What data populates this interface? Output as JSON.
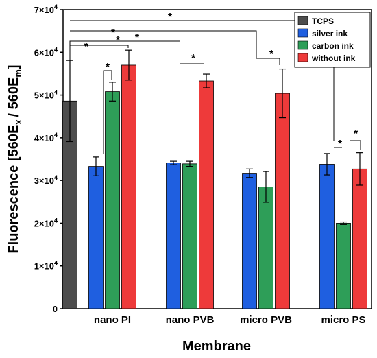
{
  "chart_data": {
    "type": "bar",
    "xlabel": "Membrane",
    "ylabel_main": "Fluorescence [560E",
    "ylabel_sub1": "x",
    "ylabel_mid": "/ 560E",
    "ylabel_sub2": "m",
    "ylabel_end": "]",
    "ylim": [
      0,
      70000
    ],
    "yticks": [
      {
        "value": 0,
        "base": "0",
        "exp": ""
      },
      {
        "value": 10000,
        "base": "1×10",
        "exp": "4"
      },
      {
        "value": 20000,
        "base": "2×10",
        "exp": "4"
      },
      {
        "value": 30000,
        "base": "3×10",
        "exp": "4"
      },
      {
        "value": 40000,
        "base": "4×10",
        "exp": "4"
      },
      {
        "value": 50000,
        "base": "5×10",
        "exp": "4"
      },
      {
        "value": 60000,
        "base": "6×10",
        "exp": "4"
      },
      {
        "value": 70000,
        "base": "7×10",
        "exp": "4"
      }
    ],
    "categories": [
      "nano PI",
      "nano PVB",
      "micro PVB",
      "micro PS"
    ],
    "control": {
      "name": "TCPS",
      "value": 48600,
      "error": 9500,
      "color": "#4d4d4d"
    },
    "series": [
      {
        "name": "silver ink",
        "color": "#1f5fe0",
        "values": [
          33300,
          34100,
          31700,
          33800
        ],
        "errors": [
          2200,
          400,
          1000,
          2500
        ]
      },
      {
        "name": "carbon ink",
        "color": "#2e9e58",
        "values": [
          50800,
          33900,
          28500,
          20000
        ],
        "errors": [
          2200,
          600,
          3600,
          300
        ]
      },
      {
        "name": "without ink",
        "color": "#ee3a3a",
        "values": [
          57000,
          53300,
          50400,
          32700
        ],
        "errors": [
          3500,
          1600,
          5700,
          3800
        ]
      }
    ],
    "significance_marker": "*",
    "legend_position": "top-right",
    "grid": false
  }
}
